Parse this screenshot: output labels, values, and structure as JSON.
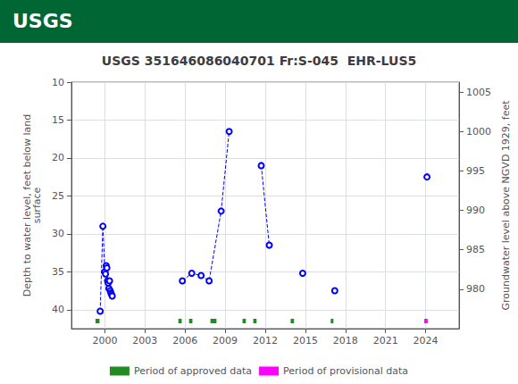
{
  "chart_data": {
    "type": "line",
    "title": "USGS 351646086040701 Fr:S-045  EHR-LUS5",
    "annotations": [
      {
        "text": "USGS"
      }
    ],
    "ylabel": "Depth to water level, feet below land\nsurface",
    "y2label": "Groundwater level above NGVD 1929, feet",
    "xlim": [
      1997.5,
      2026.5
    ],
    "xticks": [
      2000,
      2003,
      2006,
      2009,
      2012,
      2015,
      2018,
      2021,
      2024
    ],
    "ylim": [
      42.5,
      10
    ],
    "yticks": [
      10,
      15,
      20,
      25,
      30,
      35,
      40
    ],
    "y2lim": [
      975,
      1006.25
    ],
    "y2ticks": [
      980,
      985,
      990,
      995,
      1000,
      1005
    ],
    "grid": true,
    "legend": "bottom",
    "series": [
      {
        "type": "line",
        "color": "blue",
        "line_style": "dashed",
        "marker": "open_circle",
        "x": [
          1999.65,
          1999.85,
          2000.0,
          2000.05,
          2000.1,
          2000.15,
          2000.2,
          2000.25,
          2000.3,
          2000.35,
          2000.4,
          2000.45,
          2000.5,
          2000.55
        ],
        "values": [
          40.2,
          29.0,
          35.0,
          35.3,
          34.2,
          34.5,
          36.2,
          36.5,
          37.2,
          36.2,
          37.5,
          37.8,
          38.0,
          38.2
        ]
      },
      {
        "type": "line",
        "color": "blue",
        "line_style": "dashed",
        "marker": "open_circle",
        "x": [
          2005.8,
          2006.5,
          2007.2,
          2007.8,
          2008.7,
          2009.3
        ],
        "values": [
          36.2,
          35.2,
          35.5,
          36.2,
          27.0,
          16.5
        ]
      },
      {
        "type": "line",
        "color": "blue",
        "line_style": "dashed",
        "marker": "open_circle",
        "x": [
          2011.7,
          2012.3
        ],
        "values": [
          21.0,
          31.5
        ]
      },
      {
        "type": "line",
        "color": "blue",
        "line_style": "dashed",
        "marker": "open_circle",
        "x": [
          2014.8
        ],
        "values": [
          35.2
        ]
      },
      {
        "type": "line",
        "color": "blue",
        "line_style": "dashed",
        "marker": "open_circle",
        "x": [
          2017.2
        ],
        "values": [
          37.5
        ]
      },
      {
        "type": "line",
        "color": "blue",
        "line_style": "dashed",
        "marker": "open_circle",
        "x": [
          2024.1
        ],
        "values": [
          22.5
        ]
      },
      {
        "name": "Period of approved data",
        "type": "range",
        "color": "#228B22",
        "ranges": [
          [
            1999.3,
            1999.6
          ],
          [
            2005.5,
            2005.75
          ],
          [
            2006.3,
            2006.55
          ],
          [
            2007.9,
            2008.35
          ],
          [
            2010.3,
            2010.55
          ],
          [
            2011.1,
            2011.35
          ],
          [
            2013.9,
            2014.15
          ],
          [
            2016.9,
            2017.1
          ]
        ],
        "y": 41.5,
        "height": 0.6
      },
      {
        "name": "Period of provisional data",
        "type": "range",
        "color": "magenta",
        "ranges": [
          [
            2023.9,
            2024.15
          ]
        ],
        "y": 41.5,
        "height": 0.6
      }
    ]
  }
}
